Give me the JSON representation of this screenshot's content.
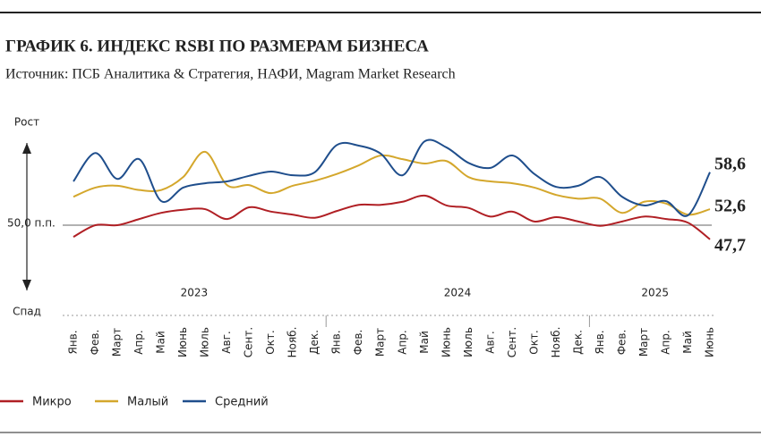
{
  "chart_data": {
    "type": "line",
    "title": "ГРАФИК 6. ИНДЕКС RSBI ПО РАЗМЕРАМ БИЗНЕСА",
    "subtitle": "Источник: ПСБ Аналитика & Стратегия, НАФИ, Magram Market Research",
    "annotations": [
      "Рост",
      "Спад"
    ],
    "years": [
      "2023",
      "2024",
      "2025"
    ],
    "categories": [
      "Янв.",
      "Фев.",
      "Март",
      "Апр.",
      "Май",
      "Июнь",
      "Июль",
      "Авг.",
      "Сент.",
      "Окт.",
      "Нояб.",
      "Дек.",
      "Янв.",
      "Фев.",
      "Март",
      "Апр.",
      "Май",
      "Июнь",
      "Июль",
      "Авг.",
      "Сент.",
      "Окт.",
      "Нояб.",
      "Дек.",
      "Янв.",
      "Фев.",
      "Март",
      "Апр.",
      "Май",
      "Июнь"
    ],
    "ylim": [
      43,
      66
    ],
    "yticks": [
      {
        "value": 50,
        "label": "50,0 п.п."
      }
    ],
    "series": [
      {
        "name": "Микро",
        "color": "#b01f24",
        "values": [
          48.1,
          50.0,
          50.0,
          51.0,
          52.0,
          52.5,
          52.6,
          51.0,
          52.9,
          52.2,
          51.7,
          51.2,
          52.3,
          53.3,
          53.3,
          53.8,
          54.8,
          53.2,
          52.8,
          51.4,
          52.2,
          50.6,
          51.3,
          50.6,
          49.9,
          50.6,
          51.4,
          51.0,
          50.4,
          47.7
        ],
        "value_labels": [
          null,
          null,
          null,
          null,
          null,
          null,
          null,
          null,
          null,
          null,
          null,
          null,
          null,
          null,
          null,
          null,
          null,
          null,
          null,
          null,
          null,
          null,
          null,
          null,
          null,
          null,
          null,
          null,
          null,
          "47,7"
        ]
      },
      {
        "name": "Малый",
        "color": "#d4a72c",
        "values": [
          54.6,
          56.1,
          56.4,
          55.7,
          55.7,
          57.8,
          61.9,
          56.5,
          56.5,
          55.2,
          56.4,
          57.2,
          58.3,
          59.7,
          61.3,
          60.7,
          60.0,
          60.4,
          57.8,
          57.1,
          56.8,
          56.1,
          54.9,
          54.3,
          54.3,
          52.0,
          53.8,
          53.5,
          51.7,
          52.6
        ],
        "value_labels": [
          null,
          null,
          null,
          null,
          null,
          null,
          null,
          null,
          null,
          null,
          null,
          null,
          null,
          null,
          null,
          null,
          null,
          null,
          null,
          null,
          null,
          null,
          null,
          null,
          null,
          null,
          null,
          null,
          null,
          "52,6"
        ]
      },
      {
        "name": "Средний",
        "color": "#1f4e8c",
        "values": [
          57.1,
          61.7,
          57.5,
          60.7,
          53.9,
          56.1,
          56.8,
          57.1,
          58.0,
          58.7,
          58.1,
          58.6,
          63.0,
          62.9,
          61.6,
          58.1,
          63.6,
          62.6,
          60.1,
          59.3,
          61.3,
          58.3,
          56.2,
          56.4,
          57.8,
          54.6,
          53.2,
          53.9,
          51.6,
          58.6
        ],
        "value_labels": [
          null,
          null,
          null,
          null,
          null,
          null,
          null,
          null,
          null,
          null,
          null,
          null,
          null,
          null,
          null,
          null,
          null,
          null,
          null,
          null,
          null,
          null,
          null,
          null,
          null,
          null,
          null,
          null,
          null,
          "58,6"
        ]
      }
    ]
  }
}
